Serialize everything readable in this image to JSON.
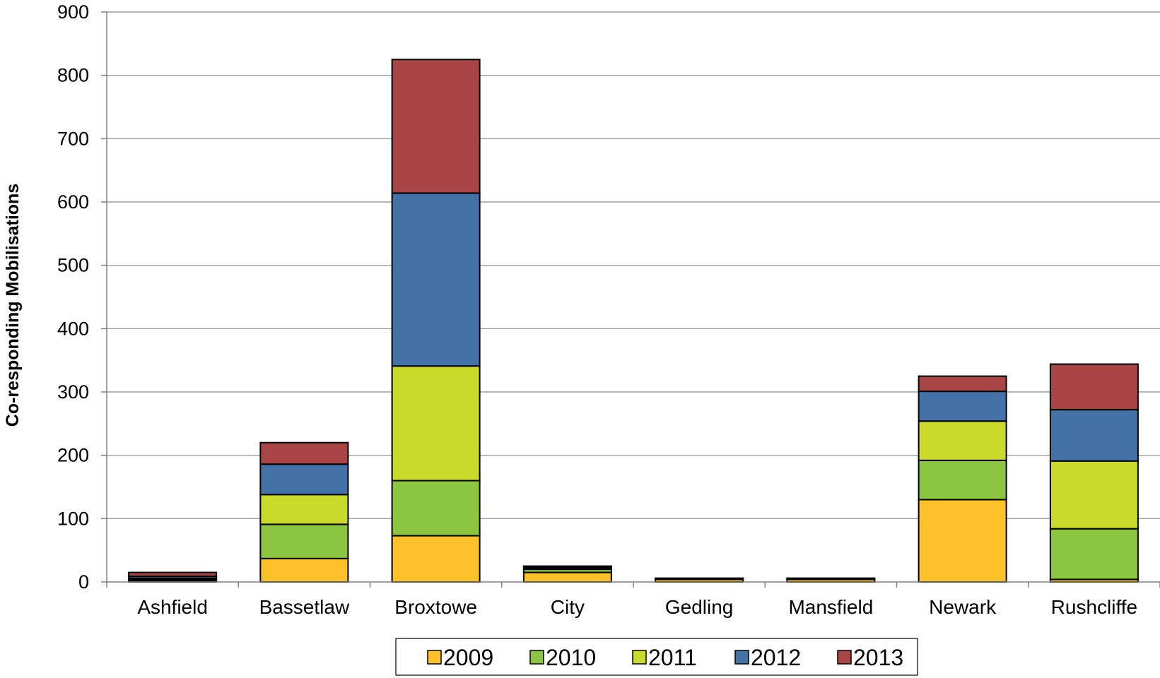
{
  "chart_data": {
    "type": "bar",
    "stacked": true,
    "title": "",
    "xlabel": "",
    "ylabel": "Co-responding Mobilisations",
    "ylim": [
      0,
      900
    ],
    "yticks": [
      0,
      100,
      200,
      300,
      400,
      500,
      600,
      700,
      800,
      900
    ],
    "grid": true,
    "legend_position": "bottom",
    "categories": [
      "Ashfield",
      "Bassetlaw",
      "Broxtowe",
      "City",
      "Gedling",
      "Mansfield",
      "Newark",
      "Rushcliffe"
    ],
    "series": [
      {
        "name": "2009",
        "color": "#FDC12A",
        "values": [
          2,
          37,
          73,
          15,
          4,
          4,
          130,
          4
        ]
      },
      {
        "name": "2010",
        "color": "#8CC53F",
        "values": [
          2,
          54,
          87,
          5,
          0,
          0,
          62,
          80
        ]
      },
      {
        "name": "2011",
        "color": "#C9DA2B",
        "values": [
          2,
          47,
          181,
          2,
          0,
          0,
          62,
          107
        ]
      },
      {
        "name": "2012",
        "color": "#4472A8",
        "values": [
          3,
          48,
          273,
          2,
          1,
          1,
          47,
          81
        ]
      },
      {
        "name": "2013",
        "color": "#A84646",
        "values": [
          6,
          34,
          211,
          1,
          1,
          1,
          24,
          72
        ]
      }
    ]
  }
}
